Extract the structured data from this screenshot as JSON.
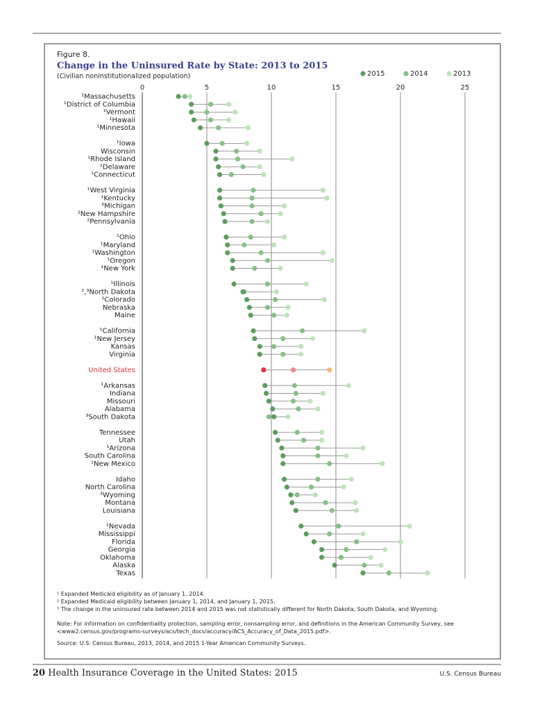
{
  "figure_label": "Figure 8.",
  "chart_data": {
    "type": "dot",
    "title": "Change in the Uninsured Rate by State: 2013 to 2015",
    "subtitle": "(Civilian noninstitutionalized population)",
    "categories": [
      "¹Massachusetts",
      "¹District of Columbia",
      "¹Vermont",
      "¹Hawaii",
      "¹Minnesota",
      "¹Iowa",
      "Wisconsin",
      "¹Rhode Island",
      "¹Delaware",
      "¹Connecticut",
      "¹West Virginia",
      "¹Kentucky",
      "²Michigan",
      "²New Hampshire",
      "²Pennsylvania",
      "¹Ohio",
      "¹Maryland",
      "¹Washington",
      "¹Oregon",
      "¹New York",
      "¹Illinois",
      "¹,³North Dakota",
      "¹Colorado",
      "Nebraska",
      "Maine",
      "¹California",
      "¹New Jersey",
      "Kansas",
      "Virginia",
      "United States",
      "¹Arkansas",
      "Indiana",
      "Missouri",
      "Alabama",
      "³South Dakota",
      "Tennessee",
      "Utah",
      "¹Arizona",
      "South Carolina",
      "¹New Mexico",
      "Idaho",
      "North Carolina",
      "³Wyoming",
      "Montana",
      "Louisiana",
      "¹Nevada",
      "Mississippi",
      "Florida",
      "Georgia",
      "Oklahoma",
      "Alaska",
      "Texas"
    ],
    "series": [
      {
        "name": "2015",
        "color": "#5a9e5e",
        "values": [
          2.8,
          3.8,
          3.8,
          4.0,
          4.5,
          5.0,
          5.7,
          5.7,
          5.9,
          6.0,
          6.0,
          6.0,
          6.1,
          6.3,
          6.4,
          6.5,
          6.6,
          6.6,
          7.0,
          7.0,
          7.1,
          7.8,
          8.1,
          8.3,
          8.4,
          8.6,
          8.7,
          9.1,
          9.1,
          9.4,
          9.5,
          9.6,
          9.8,
          10.1,
          10.2,
          10.3,
          10.5,
          10.8,
          10.9,
          10.9,
          11.0,
          11.2,
          11.5,
          11.6,
          11.9,
          12.3,
          12.7,
          13.3,
          13.9,
          13.9,
          14.9,
          17.1
        ]
      },
      {
        "name": "2014",
        "color": "#86c086",
        "values": [
          3.3,
          5.3,
          5.0,
          5.3,
          5.9,
          6.2,
          7.3,
          7.4,
          7.8,
          6.9,
          8.6,
          8.5,
          8.5,
          9.2,
          8.5,
          8.4,
          7.9,
          9.2,
          9.7,
          8.7,
          9.7,
          7.9,
          10.3,
          9.7,
          10.2,
          12.4,
          10.9,
          10.2,
          10.9,
          11.7,
          11.8,
          11.9,
          11.7,
          12.1,
          9.8,
          12.0,
          12.5,
          13.6,
          13.6,
          14.5,
          13.6,
          13.1,
          12.0,
          14.2,
          14.7,
          15.2,
          14.5,
          16.6,
          15.8,
          15.4,
          17.2,
          19.1
        ]
      },
      {
        "name": "2013",
        "color": "#bde4b8",
        "values": [
          3.7,
          6.7,
          7.2,
          6.7,
          8.2,
          8.1,
          9.1,
          11.6,
          9.1,
          9.4,
          14.0,
          14.3,
          11.0,
          10.7,
          9.7,
          11.0,
          10.2,
          14.0,
          14.7,
          10.7,
          12.7,
          10.4,
          14.1,
          11.3,
          11.2,
          17.2,
          13.2,
          12.3,
          12.3,
          14.5,
          16.0,
          14.0,
          13.0,
          13.6,
          11.3,
          13.9,
          13.9,
          17.1,
          15.8,
          18.6,
          16.2,
          15.6,
          13.4,
          16.5,
          16.6,
          20.7,
          17.1,
          20.0,
          18.8,
          17.7,
          18.5,
          22.1
        ]
      }
    ],
    "highlight": {
      "index": 29,
      "label_color": "#d9303e",
      "colors": [
        "#e0303e",
        "#f08585",
        "#f5b87a"
      ]
    },
    "xlim": [
      0,
      25
    ],
    "xticks": [
      0,
      5,
      10,
      15,
      20,
      25
    ],
    "grid": true,
    "legend": "top-right"
  },
  "footnotes": [
    "¹ Expanded Medicaid eligibility as of January 1, 2014.",
    "² Expanded Medicaid eligibility between January 1, 2014, and January 1, 2015.",
    "³ The change in the uninsured rate between 2014 and 2015 was not statistically different for North Dakota, South Dakota, and Wyoming."
  ],
  "note": "Note: For information on confidentiality protection, sampling error, nonsampling error, and definitions in the American Community Survey, see <www2.census.gov/programs-surveys/acs/tech_docs/accuracy/ACS_Accuracy_of_Data_2015.pdf>.",
  "source": "Source: U.S. Census Bureau, 2013, 2014, and 2015 1-Year American Community Surveys.",
  "footer": {
    "page": "20",
    "title": "Health Insurance Coverage in the United States: 2015",
    "publisher": "U.S. Census Bureau"
  }
}
